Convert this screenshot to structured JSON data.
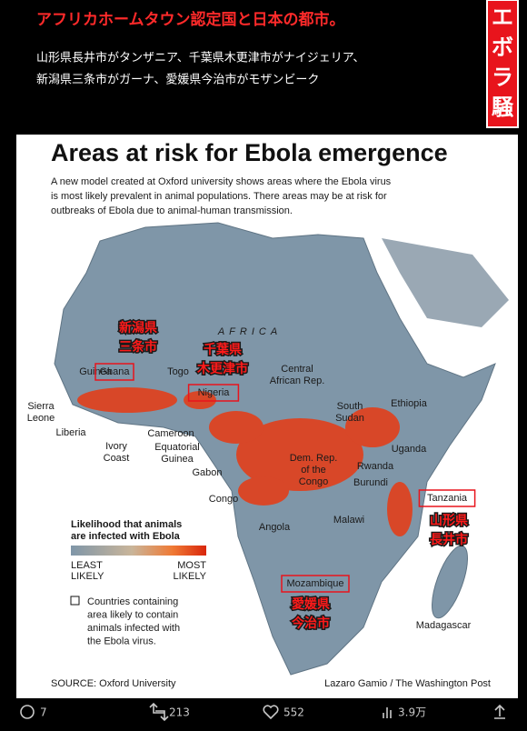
{
  "header": {
    "title": "アフリカホームタウン認定国と日本の都市。",
    "subtitle_lines": [
      "山形県長井市がタンザニア、千葉県木更津市がナイジェリア、",
      "新潟県三条市がガーナ、愛媛県今治市がモザンビーク"
    ],
    "badge": "エボラ騒"
  },
  "map": {
    "title": "Areas at risk for Ebola emergence",
    "description_lines": [
      "A new model created at Oxford university shows areas where the Ebola virus",
      "is most likely prevalent in animal populations. There areas may be at risk for",
      "outbreaks of Ebola due to animal-human transmission."
    ],
    "continent_label": "AFRICA",
    "countries": [
      {
        "lines": [
          "Guinea"
        ]
      },
      {
        "lines": [
          "Ghana"
        ]
      },
      {
        "lines": [
          "Togo"
        ]
      },
      {
        "lines": [
          "Nigeria"
        ]
      },
      {
        "lines": [
          "Central",
          "African Rep."
        ]
      },
      {
        "lines": [
          "Ethiopia"
        ]
      },
      {
        "lines": [
          "South",
          "Sudan"
        ]
      },
      {
        "lines": [
          "Sierra",
          "Leone"
        ]
      },
      {
        "lines": [
          "Liberia"
        ]
      },
      {
        "lines": [
          "Ivory",
          "Coast"
        ]
      },
      {
        "lines": [
          "Cameroon"
        ]
      },
      {
        "lines": [
          "Equatorial",
          "Guinea"
        ]
      },
      {
        "lines": [
          "Uganda"
        ]
      },
      {
        "lines": [
          "Dem. Rep.",
          "of the",
          "Congo"
        ]
      },
      {
        "lines": [
          "Rwanda"
        ]
      },
      {
        "lines": [
          "Burundi"
        ]
      },
      {
        "lines": [
          "Gabon"
        ]
      },
      {
        "lines": [
          "Congo"
        ]
      },
      {
        "lines": [
          "Tanzania"
        ]
      },
      {
        "lines": [
          "Angola"
        ]
      },
      {
        "lines": [
          "Malawi"
        ]
      },
      {
        "lines": [
          "Mozambique"
        ]
      },
      {
        "lines": [
          "Madagascar"
        ]
      }
    ],
    "annotations": [
      {
        "lines": [
          "新潟県",
          "三条市"
        ]
      },
      {
        "lines": [
          "千葉県",
          "木更津市"
        ]
      },
      {
        "lines": [
          "山形県",
          "長井市"
        ]
      },
      {
        "lines": [
          "愛媛県",
          "今治市"
        ]
      }
    ],
    "legend": {
      "title_lines": [
        "Likelihood that animals",
        "are infected with Ebola"
      ],
      "least_lines": [
        "LEAST",
        "LIKELY"
      ],
      "most_lines": [
        "MOST",
        "LIKELY"
      ],
      "box_lines": [
        "Countries containing",
        "area likely to contain",
        "animals infected with",
        "the Ebola virus."
      ]
    },
    "source": "SOURCE: Oxford University",
    "credit": "Lazaro Gamio / The Washington Post"
  },
  "footer": {
    "replies": "7",
    "reposts": "213",
    "likes": "552",
    "views": "3.9万"
  }
}
